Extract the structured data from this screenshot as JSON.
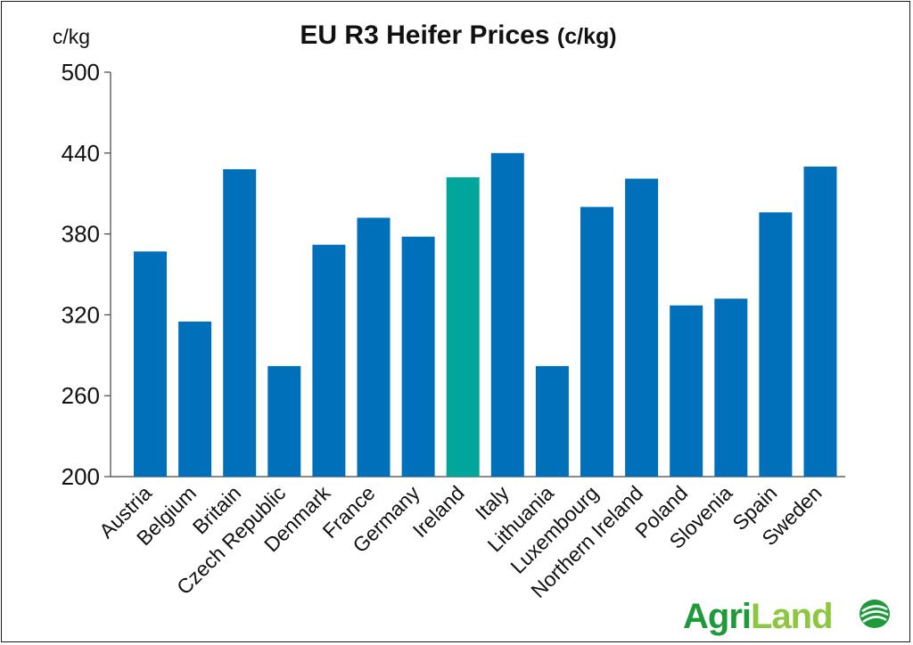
{
  "chart_data": {
    "type": "bar",
    "title": "EU R3 Heifer Prices",
    "title_unit": "(c/kg)",
    "ylabel": "c/kg",
    "xlabel": "",
    "ylim": [
      200,
      500
    ],
    "yticks": [
      200,
      260,
      320,
      380,
      440,
      500
    ],
    "grid": false,
    "categories": [
      "Austria",
      "Belgium",
      "Britain",
      "Czech Republic",
      "Denmark",
      "France",
      "Germany",
      "Ireland",
      "Italy",
      "Lithuania",
      "Luxembourg",
      "Northern Ireland",
      "Poland",
      "Slovenia",
      "Spain",
      "Sweden"
    ],
    "values": [
      367,
      315,
      428,
      282,
      372,
      392,
      378,
      422,
      440,
      282,
      400,
      421,
      327,
      332,
      396,
      430
    ],
    "highlight": "Ireland",
    "colors": {
      "bar": "#0070BB",
      "highlight": "#00A699"
    }
  },
  "logo": {
    "text_agri": "Agri",
    "text_land": "Land",
    "colors": {
      "agri": "#1F9A3B",
      "land": "#8DC63F"
    }
  }
}
